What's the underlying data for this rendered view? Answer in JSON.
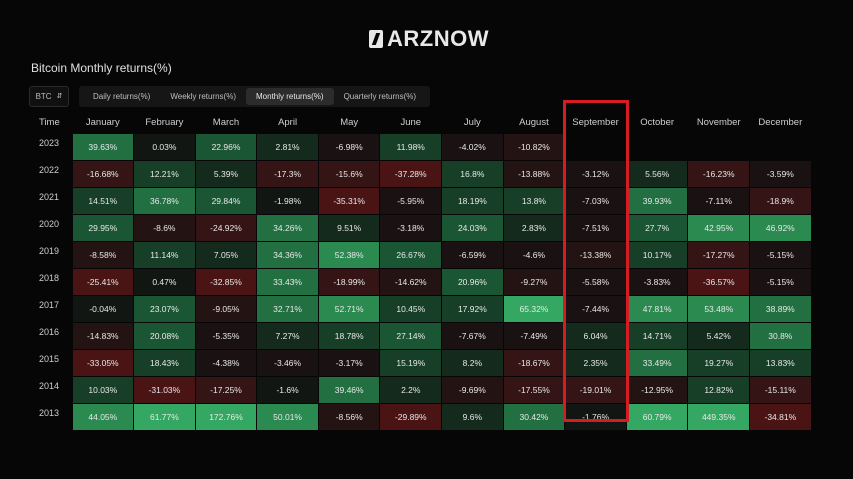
{
  "brand": {
    "name": "ARZNOW"
  },
  "page_title": "Bitcoin Monthly returns(%)",
  "toolbar": {
    "asset": "BTC",
    "tabs": [
      {
        "label": "Daily returns(%)",
        "active": false
      },
      {
        "label": "Weekly returns(%)",
        "active": false
      },
      {
        "label": "Monthly returns(%)",
        "active": true
      },
      {
        "label": "Quarterly returns(%)",
        "active": false
      }
    ]
  },
  "table": {
    "year_header": "Time",
    "months": [
      "January",
      "February",
      "March",
      "April",
      "May",
      "June",
      "July",
      "August",
      "September",
      "October",
      "November",
      "December"
    ],
    "highlight_month": "September",
    "rows": [
      {
        "year": "2023",
        "values": [
          "39.63%",
          "0.03%",
          "22.96%",
          "2.81%",
          "-6.98%",
          "11.98%",
          "-4.02%",
          "-10.82%",
          "",
          "",
          "",
          ""
        ]
      },
      {
        "year": "2022",
        "values": [
          "-16.68%",
          "12.21%",
          "5.39%",
          "-17.3%",
          "-15.6%",
          "-37.28%",
          "16.8%",
          "-13.88%",
          "-3.12%",
          "5.56%",
          "-16.23%",
          "-3.59%"
        ]
      },
      {
        "year": "2021",
        "values": [
          "14.51%",
          "36.78%",
          "29.84%",
          "-1.98%",
          "-35.31%",
          "-5.95%",
          "18.19%",
          "13.8%",
          "-7.03%",
          "39.93%",
          "-7.11%",
          "-18.9%"
        ]
      },
      {
        "year": "2020",
        "values": [
          "29.95%",
          "-8.6%",
          "-24.92%",
          "34.26%",
          "9.51%",
          "-3.18%",
          "24.03%",
          "2.83%",
          "-7.51%",
          "27.7%",
          "42.95%",
          "46.92%"
        ]
      },
      {
        "year": "2019",
        "values": [
          "-8.58%",
          "11.14%",
          "7.05%",
          "34.36%",
          "52.38%",
          "26.67%",
          "-6.59%",
          "-4.6%",
          "-13.38%",
          "10.17%",
          "-17.27%",
          "-5.15%"
        ]
      },
      {
        "year": "2018",
        "values": [
          "-25.41%",
          "0.47%",
          "-32.85%",
          "33.43%",
          "-18.99%",
          "-14.62%",
          "20.96%",
          "-9.27%",
          "-5.58%",
          "-3.83%",
          "-36.57%",
          "-5.15%"
        ]
      },
      {
        "year": "2017",
        "values": [
          "-0.04%",
          "23.07%",
          "-9.05%",
          "32.71%",
          "52.71%",
          "10.45%",
          "17.92%",
          "65.32%",
          "-7.44%",
          "47.81%",
          "53.48%",
          "38.89%"
        ]
      },
      {
        "year": "2016",
        "values": [
          "-14.83%",
          "20.08%",
          "-5.35%",
          "7.27%",
          "18.78%",
          "27.14%",
          "-7.67%",
          "-7.49%",
          "6.04%",
          "14.71%",
          "5.42%",
          "30.8%"
        ]
      },
      {
        "year": "2015",
        "values": [
          "-33.05%",
          "18.43%",
          "-4.38%",
          "-3.46%",
          "-3.17%",
          "15.19%",
          "8.2%",
          "-18.67%",
          "2.35%",
          "33.49%",
          "19.27%",
          "13.83%"
        ]
      },
      {
        "year": "2014",
        "values": [
          "10.03%",
          "-31.03%",
          "-17.25%",
          "-1.6%",
          "39.46%",
          "2.2%",
          "-9.69%",
          "-17.55%",
          "-19.01%",
          "-12.95%",
          "12.82%",
          "-15.11%"
        ]
      },
      {
        "year": "2013",
        "values": [
          "44.05%",
          "61.77%",
          "172.76%",
          "50.01%",
          "-8.56%",
          "-29.89%",
          "9.6%",
          "30.42%",
          "-1.76%",
          "60.79%",
          "449.35%",
          "-34.81%"
        ]
      }
    ]
  },
  "colors": {
    "positive": "#1e6b3e",
    "positive_strong": "#2a9a56",
    "negative": "#5c1111",
    "neutral": "#121212",
    "highlight_border": "#d51c23"
  }
}
